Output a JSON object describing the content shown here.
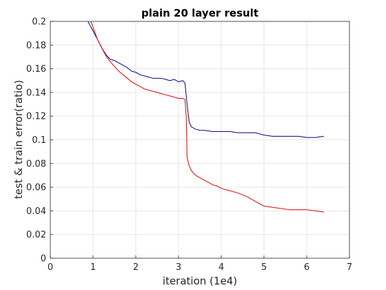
{
  "chart_data": {
    "type": "line",
    "title": "plain 20 layer result",
    "xlabel": "iteration (1e4)",
    "ylabel": "test & train error(ratio)",
    "xlim": [
      0,
      7
    ],
    "ylim": [
      0,
      0.2
    ],
    "xticks": [
      0,
      1,
      2,
      3,
      4,
      5,
      6,
      7
    ],
    "yticks": [
      0,
      0.02,
      0.04,
      0.06,
      0.08,
      0.1,
      0.12,
      0.14,
      0.16,
      0.18,
      0.2
    ],
    "grid": true,
    "legend": "none",
    "series": [
      {
        "color": "#00008b",
        "x": [
          0.88,
          1.0,
          1.1,
          1.2,
          1.3,
          1.4,
          1.5,
          1.6,
          1.7,
          1.8,
          1.9,
          2.0,
          2.1,
          2.2,
          2.3,
          2.4,
          2.5,
          2.6,
          2.7,
          2.8,
          2.9,
          3.0,
          3.1,
          3.15,
          3.2,
          3.25,
          3.3,
          3.4,
          3.5,
          3.6,
          3.8,
          4.0,
          4.2,
          4.4,
          4.6,
          4.8,
          5.0,
          5.2,
          5.4,
          5.6,
          5.8,
          6.0,
          6.2,
          6.4
        ],
        "y": [
          0.2,
          0.192,
          0.185,
          0.178,
          0.172,
          0.168,
          0.167,
          0.165,
          0.163,
          0.161,
          0.158,
          0.157,
          0.155,
          0.154,
          0.153,
          0.152,
          0.152,
          0.152,
          0.151,
          0.15,
          0.151,
          0.149,
          0.15,
          0.148,
          0.13,
          0.115,
          0.111,
          0.109,
          0.108,
          0.108,
          0.107,
          0.107,
          0.107,
          0.106,
          0.106,
          0.106,
          0.104,
          0.103,
          0.103,
          0.103,
          0.103,
          0.102,
          0.102,
          0.103
        ]
      },
      {
        "color": "#e00000",
        "x": [
          0.95,
          1.0,
          1.1,
          1.2,
          1.3,
          1.4,
          1.5,
          1.6,
          1.7,
          1.8,
          1.9,
          2.0,
          2.1,
          2.2,
          2.3,
          2.4,
          2.5,
          2.6,
          2.7,
          2.8,
          2.9,
          3.0,
          3.1,
          3.15,
          3.18,
          3.2,
          3.25,
          3.3,
          3.4,
          3.5,
          3.6,
          3.7,
          3.8,
          3.9,
          4.0,
          4.2,
          4.4,
          4.6,
          4.8,
          5.0,
          5.2,
          5.4,
          5.6,
          5.8,
          6.0,
          6.2,
          6.4
        ],
        "y": [
          0.2,
          0.195,
          0.185,
          0.178,
          0.171,
          0.166,
          0.162,
          0.158,
          0.155,
          0.152,
          0.149,
          0.147,
          0.145,
          0.143,
          0.142,
          0.141,
          0.14,
          0.139,
          0.138,
          0.137,
          0.136,
          0.135,
          0.135,
          0.134,
          0.12,
          0.085,
          0.078,
          0.074,
          0.07,
          0.068,
          0.066,
          0.064,
          0.062,
          0.061,
          0.059,
          0.057,
          0.055,
          0.052,
          0.048,
          0.044,
          0.043,
          0.042,
          0.041,
          0.041,
          0.041,
          0.04,
          0.039
        ]
      }
    ]
  }
}
